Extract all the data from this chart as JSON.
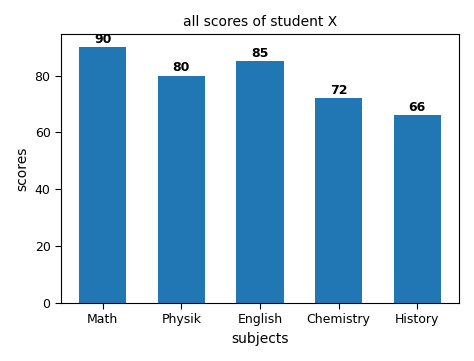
{
  "categories": [
    "Math",
    "Physik",
    "English",
    "Chemistry",
    "History"
  ],
  "values": [
    90,
    80,
    85,
    72,
    66
  ],
  "bar_color": "#2077b4",
  "title": "all scores of student X",
  "xlabel": "subjects",
  "ylabel": "scores",
  "title_fontsize": 10,
  "label_fontsize": 10,
  "tick_fontsize": 9,
  "annotation_fontsize": 9,
  "bar_width": 0.6
}
